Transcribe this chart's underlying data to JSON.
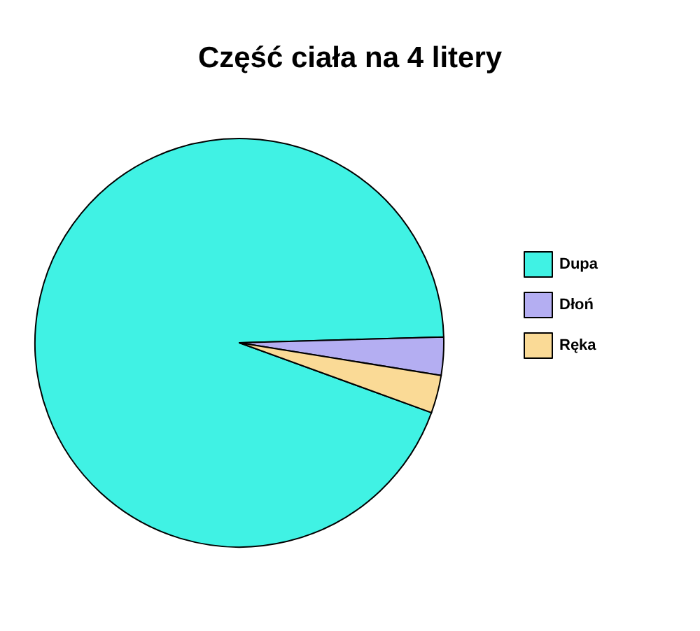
{
  "chart_data": {
    "type": "pie",
    "title": "Część ciała na 4 litery",
    "categories": [
      "Dupa",
      "Dłoń",
      "Ręka"
    ],
    "values": [
      94,
      3,
      3
    ],
    "colors": [
      "#40f2e4",
      "#b4aef2",
      "#fada96"
    ],
    "legend": "right"
  }
}
